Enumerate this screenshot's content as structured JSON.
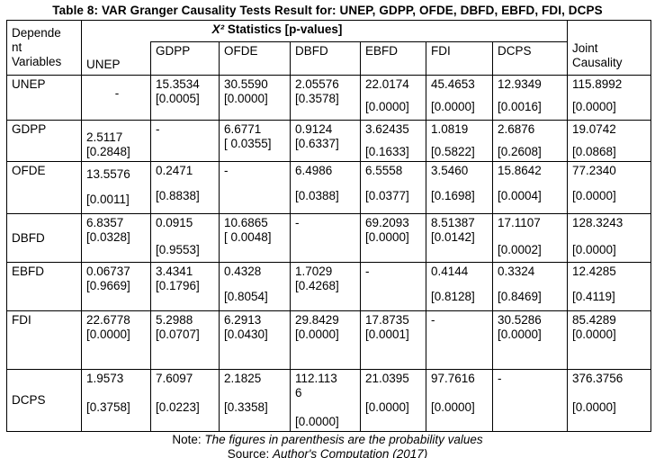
{
  "title": "Table 8: VAR Granger Causality Tests Result for: UNEP, GDPP, OFDE, DBFD, EBFD, FDI, DCPS",
  "table": {
    "corner_header": "Depende\nnt\nVariables",
    "stats_header": {
      "x2": "X²",
      "rest": " Statistics [p-values]"
    },
    "joint_header": "Joint Causality",
    "columns": [
      "UNEP",
      "GDPP",
      "OFDE",
      "DBFD",
      "EBFD",
      "FDI",
      "DCPS"
    ],
    "rows": [
      {
        "label": "UNEP",
        "cells": [
          {
            "stat": "-",
            "p": ""
          },
          {
            "stat": "15.3534",
            "p": "[0.0005]"
          },
          {
            "stat": "30.5590",
            "p": "[0.0000]"
          },
          {
            "stat": "2.05576",
            "p": "[0.3578]"
          },
          {
            "stat": "22.0174",
            "p": "[0.0000]"
          },
          {
            "stat": "45.4653",
            "p": "[0.0000]"
          },
          {
            "stat": "12.9349",
            "p": "[0.0016]"
          },
          {
            "stat": "115.8992",
            "p": "[0.0000]"
          }
        ]
      },
      {
        "label": "GDPP",
        "cells": [
          {
            "stat": "2.5117",
            "p": "[0.2848]"
          },
          {
            "stat": "-",
            "p": ""
          },
          {
            "stat": "6.6771",
            "p": "[ 0.0355]"
          },
          {
            "stat": "0.9124",
            "p": "[0.6337]"
          },
          {
            "stat": "3.62435",
            "p": "[0.1633]"
          },
          {
            "stat": "1.0819",
            "p": "[0.5822]"
          },
          {
            "stat": "2.6876",
            "p": "[0.2608]"
          },
          {
            "stat": "19.0742",
            "p": "[0.0868]"
          }
        ]
      },
      {
        "label": "OFDE",
        "cells": [
          {
            "stat": "13.5576",
            "p": "[0.0011]"
          },
          {
            "stat": "0.2471",
            "p": "[0.8838]"
          },
          {
            "stat": "-",
            "p": ""
          },
          {
            "stat": "6.4986",
            "p": "[0.0388]"
          },
          {
            "stat": "6.5558",
            "p": "[0.0377]"
          },
          {
            "stat": "3.5460",
            "p": "[0.1698]"
          },
          {
            "stat": "15.8642",
            "p": "[0.0004]"
          },
          {
            "stat": "77.2340",
            "p": "[0.0000]"
          }
        ]
      },
      {
        "label": "DBFD",
        "cells": [
          {
            "stat": "6.8357",
            "p": "[0.0328]"
          },
          {
            "stat": "0.0915",
            "p": "[0.9553]"
          },
          {
            "stat": "10.6865",
            "p": "[ 0.0048]"
          },
          {
            "stat": "-",
            "p": ""
          },
          {
            "stat": "69.2093",
            "p": "[0.0000]"
          },
          {
            "stat": "8.51387",
            "p": "[0.0142]"
          },
          {
            "stat": "17.1107",
            "p": "[0.0002]"
          },
          {
            "stat": "128.3243",
            "p": "[0.0000]"
          }
        ]
      },
      {
        "label": "EBFD",
        "cells": [
          {
            "stat": "0.06737",
            "p": "[0.9669]"
          },
          {
            "stat": "3.4341",
            "p": "[0.1796]"
          },
          {
            "stat": "0.4328",
            "p": "[0.8054]"
          },
          {
            "stat": "1.7029",
            "p": "[0.4268]"
          },
          {
            "stat": "-",
            "p": ""
          },
          {
            "stat": "0.4144",
            "p": "[0.8128]"
          },
          {
            "stat": "0.3324",
            "p": "[0.8469]"
          },
          {
            "stat": "12.4285",
            "p": "[0.4119]"
          }
        ]
      },
      {
        "label": "FDI",
        "cells": [
          {
            "stat": "22.6778",
            "p": "[0.0000]"
          },
          {
            "stat": "5.2988",
            "p": "[0.0707]"
          },
          {
            "stat": "6.2913",
            "p": "[0.0430]"
          },
          {
            "stat": "29.8429",
            "p": "[0.0000]"
          },
          {
            "stat": "17.8735",
            "p": "[0.0001]"
          },
          {
            "stat": "-",
            "p": ""
          },
          {
            "stat": "30.5286",
            "p": "[0.0000]"
          },
          {
            "stat": "85.4289",
            "p": "[0.0000]"
          }
        ]
      },
      {
        "label": "DCPS",
        "cells": [
          {
            "stat": "1.9573",
            "p": "[0.3758]"
          },
          {
            "stat": "7.6097",
            "p": "[0.0223]"
          },
          {
            "stat": "2.1825",
            "p": "[0.3358]"
          },
          {
            "stat": "112.113\n6",
            "p": "[0.0000]"
          },
          {
            "stat": "21.0395",
            "p": "[0.0000]"
          },
          {
            "stat": "97.7616",
            "p": "[0.0000]"
          },
          {
            "stat": "-",
            "p": ""
          },
          {
            "stat": "376.3756",
            "p": "[0.0000]"
          }
        ]
      }
    ]
  },
  "note": {
    "prefix": "Note: ",
    "text": "The figures in parenthesis are the probability values"
  },
  "source": {
    "prefix": "Source: ",
    "text": "Author's Computation (2017)"
  }
}
